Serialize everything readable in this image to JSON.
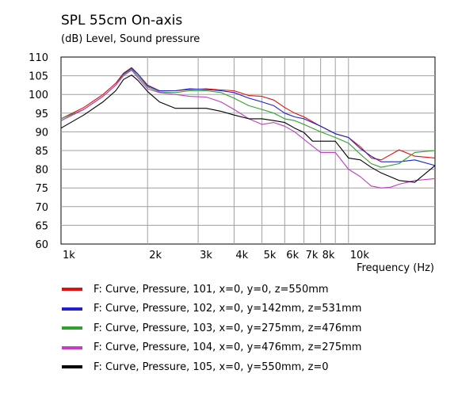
{
  "chart_data": {
    "type": "line",
    "title": "SPL 55cm On-axis",
    "subtitle": "(dB)  Level, Sound pressure",
    "xlabel": "Frequency  (Hz)",
    "x_scale": "log",
    "xlim": [
      1000,
      20000
    ],
    "ylim": [
      60,
      110
    ],
    "x_ticks": [
      {
        "value": 1000,
        "label": "1k"
      },
      {
        "value": 2000,
        "label": "2k"
      },
      {
        "value": 3000,
        "label": "3k"
      },
      {
        "value": 4000,
        "label": "4k"
      },
      {
        "value": 5000,
        "label": "5k"
      },
      {
        "value": 6000,
        "label": "6k"
      },
      {
        "value": 7000,
        "label": "7k"
      },
      {
        "value": 8000,
        "label": "8k"
      },
      {
        "value": 10000,
        "label": "10k"
      }
    ],
    "x_grid": [
      1000,
      2000,
      3000,
      4000,
      5000,
      6000,
      7000,
      8000,
      9000,
      10000,
      20000
    ],
    "y_ticks": [
      60,
      65,
      70,
      75,
      80,
      85,
      90,
      95,
      100,
      105,
      110
    ],
    "grid": true,
    "legend_position": "bottom",
    "series": [
      {
        "name": "F: Curve, Pressure, 101, x=0, y=0, z=550mm",
        "color": "#e01010",
        "points": [
          [
            1000,
            93.5
          ],
          [
            1200,
            96.5
          ],
          [
            1400,
            100
          ],
          [
            1550,
            103
          ],
          [
            1650,
            105.7
          ],
          [
            1760,
            107.2
          ],
          [
            1850,
            105.5
          ],
          [
            2000,
            102.5
          ],
          [
            2200,
            101
          ],
          [
            2500,
            101
          ],
          [
            2800,
            101.3
          ],
          [
            3200,
            101.5
          ],
          [
            3600,
            101.2
          ],
          [
            4000,
            101
          ],
          [
            4500,
            99.7
          ],
          [
            5000,
            99.5
          ],
          [
            5500,
            98.5
          ],
          [
            6000,
            96.5
          ],
          [
            6500,
            95
          ],
          [
            7000,
            94
          ],
          [
            8000,
            91.5
          ],
          [
            9000,
            89.5
          ],
          [
            10000,
            88.5
          ],
          [
            11000,
            86
          ],
          [
            12000,
            83
          ],
          [
            13000,
            82.5
          ],
          [
            15000,
            85.2
          ],
          [
            17000,
            83.5
          ],
          [
            20000,
            83
          ]
        ]
      },
      {
        "name": "F: Curve, Pressure, 102, x=0, y=142mm, z=531mm",
        "color": "#2020d0",
        "points": [
          [
            1000,
            93
          ],
          [
            1200,
            96
          ],
          [
            1400,
            99.5
          ],
          [
            1550,
            102.5
          ],
          [
            1650,
            105.5
          ],
          [
            1760,
            107
          ],
          [
            1850,
            105.5
          ],
          [
            2000,
            102.3
          ],
          [
            2200,
            101
          ],
          [
            2500,
            101
          ],
          [
            2800,
            101.5
          ],
          [
            3200,
            101.3
          ],
          [
            3600,
            101
          ],
          [
            4000,
            100.5
          ],
          [
            4500,
            99
          ],
          [
            5000,
            98
          ],
          [
            5500,
            97
          ],
          [
            6000,
            95
          ],
          [
            6500,
            94
          ],
          [
            7000,
            93.5
          ],
          [
            8000,
            91.5
          ],
          [
            9000,
            89.5
          ],
          [
            10000,
            88.5
          ],
          [
            11000,
            85.5
          ],
          [
            12000,
            83.5
          ],
          [
            13000,
            82
          ],
          [
            15000,
            82
          ],
          [
            17000,
            82.5
          ],
          [
            20000,
            81
          ]
        ]
      },
      {
        "name": "F: Curve, Pressure, 103, x=0, y=275mm, z=476mm",
        "color": "#30a030",
        "points": [
          [
            1000,
            93.5
          ],
          [
            1200,
            96
          ],
          [
            1400,
            99.5
          ],
          [
            1550,
            102.5
          ],
          [
            1650,
            105.3
          ],
          [
            1760,
            106.8
          ],
          [
            1850,
            105
          ],
          [
            2000,
            102
          ],
          [
            2200,
            100.7
          ],
          [
            2500,
            100.5
          ],
          [
            2800,
            101
          ],
          [
            3200,
            101
          ],
          [
            3600,
            100.5
          ],
          [
            4000,
            99
          ],
          [
            4500,
            97
          ],
          [
            5000,
            96
          ],
          [
            5500,
            95
          ],
          [
            6000,
            93.5
          ],
          [
            6500,
            93
          ],
          [
            7000,
            92
          ],
          [
            8000,
            90
          ],
          [
            9000,
            88.5
          ],
          [
            10000,
            87
          ],
          [
            11000,
            84
          ],
          [
            12000,
            81.5
          ],
          [
            13000,
            80.5
          ],
          [
            15000,
            81.5
          ],
          [
            17000,
            84.5
          ],
          [
            20000,
            85
          ]
        ]
      },
      {
        "name": "F: Curve, Pressure, 104, x=0, y=476mm, z=275mm",
        "color": "#c040c0",
        "points": [
          [
            1000,
            93
          ],
          [
            1200,
            96
          ],
          [
            1400,
            99.5
          ],
          [
            1550,
            102.5
          ],
          [
            1650,
            105
          ],
          [
            1760,
            106.5
          ],
          [
            1850,
            104.5
          ],
          [
            2000,
            101.5
          ],
          [
            2200,
            100.5
          ],
          [
            2500,
            100
          ],
          [
            2800,
            99.5
          ],
          [
            3200,
            99.3
          ],
          [
            3600,
            98
          ],
          [
            4000,
            96
          ],
          [
            4500,
            93.5
          ],
          [
            5000,
            92
          ],
          [
            5500,
            92.5
          ],
          [
            6000,
            91.5
          ],
          [
            6500,
            90
          ],
          [
            7000,
            88
          ],
          [
            8000,
            84.5
          ],
          [
            9000,
            84.5
          ],
          [
            10000,
            80
          ],
          [
            11000,
            78
          ],
          [
            12000,
            75.5
          ],
          [
            13000,
            75
          ],
          [
            14000,
            75.2
          ],
          [
            15000,
            76
          ],
          [
            17000,
            77
          ],
          [
            20000,
            77.5
          ]
        ]
      },
      {
        "name": "F: Curve, Pressure, 105, x=0, y=550mm, z=0",
        "color": "#000000",
        "points": [
          [
            1000,
            91
          ],
          [
            1200,
            94.5
          ],
          [
            1400,
            98
          ],
          [
            1550,
            101
          ],
          [
            1650,
            104
          ],
          [
            1760,
            105.2
          ],
          [
            1850,
            103.8
          ],
          [
            2000,
            100.8
          ],
          [
            2200,
            98
          ],
          [
            2500,
            96.3
          ],
          [
            2800,
            96.3
          ],
          [
            3200,
            96.3
          ],
          [
            3600,
            95.5
          ],
          [
            4000,
            94.5
          ],
          [
            4500,
            93.5
          ],
          [
            5000,
            93.5
          ],
          [
            5500,
            93
          ],
          [
            6000,
            92.5
          ],
          [
            6500,
            91
          ],
          [
            7000,
            89.8
          ],
          [
            7500,
            87.5
          ],
          [
            8000,
            87.5
          ],
          [
            9000,
            87.5
          ],
          [
            10000,
            83
          ],
          [
            11000,
            82.5
          ],
          [
            12000,
            80.5
          ],
          [
            13000,
            79
          ],
          [
            15000,
            77
          ],
          [
            17000,
            76.5
          ],
          [
            20000,
            81
          ]
        ]
      }
    ]
  }
}
